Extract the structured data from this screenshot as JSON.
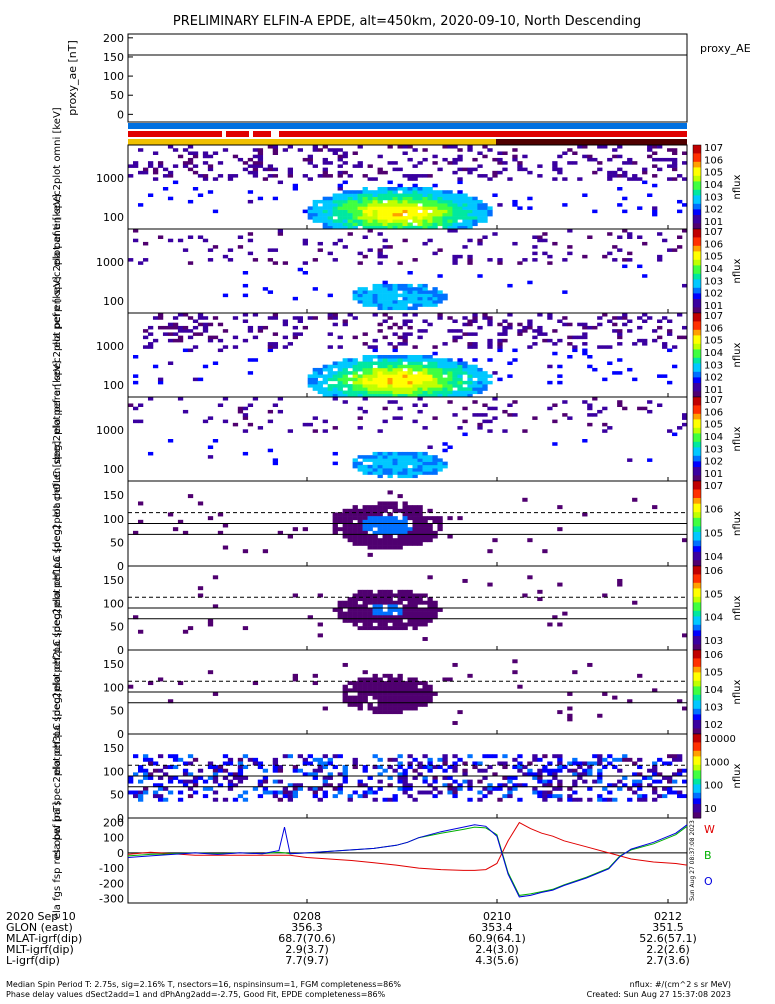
{
  "title": "PRELIMINARY ELFIN-A EPDE, alt=450km, 2020-09-10, North Descending",
  "chart_data": [
    {
      "type": "line",
      "ylabel": "proxy_ae [nT]",
      "legend": [
        "proxy_AE"
      ],
      "ylim": [
        -20,
        210
      ],
      "yticks": [
        "200",
        "150",
        "100",
        "50",
        "0"
      ],
      "reference_line": 155
    },
    {
      "type": "heatmap",
      "ylabel": "ela pef en spec2plot omni [keV]",
      "yscale": "log",
      "ylim": [
        50,
        7000
      ],
      "yticks": [
        "1000",
        "100"
      ],
      "colorbar": {
        "label": "nflux",
        "scale": "log",
        "ticks": [
          "10^7",
          "10^6",
          "10^5",
          "10^4",
          "10^3",
          "10^2",
          "10^1"
        ]
      }
    },
    {
      "type": "heatmap",
      "ylabel": "ela pef en spec2plot anti [keV]",
      "yscale": "log",
      "ylim": [
        50,
        7000
      ],
      "yticks": [
        "1000",
        "100"
      ],
      "colorbar": {
        "label": "nflux",
        "scale": "log",
        "ticks": [
          "10^7",
          "10^6",
          "10^5",
          "10^4",
          "10^3",
          "10^2",
          "10^1"
        ]
      }
    },
    {
      "type": "heatmap",
      "ylabel": "ela pef en spec2plot perp [keV]",
      "yscale": "log",
      "ylim": [
        50,
        7000
      ],
      "yticks": [
        "1000",
        "100"
      ],
      "colorbar": {
        "label": "nflux",
        "scale": "log",
        "ticks": [
          "10^7",
          "10^6",
          "10^5",
          "10^4",
          "10^3",
          "10^2",
          "10^1"
        ]
      }
    },
    {
      "type": "heatmap",
      "ylabel": "ela pef en spec2plot para [keV]",
      "yscale": "log",
      "ylim": [
        50,
        7000
      ],
      "yticks": [
        "1000",
        "100"
      ],
      "colorbar": {
        "label": "nflux",
        "scale": "log",
        "ticks": [
          "10^7",
          "10^6",
          "10^5",
          "10^4",
          "10^3",
          "10^2",
          "10^1"
        ]
      }
    },
    {
      "type": "heatmap",
      "ylabel": "ela pef pa spec2plot ch0LC [deg]",
      "ylim": [
        0,
        180
      ],
      "yticks": [
        "150",
        "100",
        "50",
        "0"
      ],
      "colorbar": {
        "label": "nflux",
        "scale": "log",
        "ticks": [
          "10^7",
          "10^6",
          "10^5",
          "10^4"
        ]
      }
    },
    {
      "type": "heatmap",
      "ylabel": "ela pef pa spec2plot ch1LC [deg]",
      "ylim": [
        0,
        180
      ],
      "yticks": [
        "150",
        "100",
        "50",
        "0"
      ],
      "colorbar": {
        "label": "nflux",
        "scale": "log",
        "ticks": [
          "10^6",
          "10^5",
          "10^4",
          "10^3"
        ]
      }
    },
    {
      "type": "heatmap",
      "ylabel": "ela pef pa spec2plot ch2LC [deg]",
      "ylim": [
        0,
        180
      ],
      "yticks": [
        "150",
        "100",
        "50",
        "0"
      ],
      "colorbar": {
        "label": "nflux",
        "scale": "log",
        "ticks": [
          "10^6",
          "10^5",
          "10^4",
          "10^3",
          "10^2"
        ]
      }
    },
    {
      "type": "heatmap",
      "ylabel": "ela pef pa spec2plot ch3LC [deg]",
      "ylim": [
        0,
        180
      ],
      "yticks": [
        "150",
        "100",
        "50",
        "0"
      ],
      "colorbar": {
        "label": "nflux",
        "scale": "log",
        "ticks": [
          "10000",
          "1000",
          "100",
          "10"
        ]
      }
    },
    {
      "type": "line",
      "ylabel": "ela fgs fsp res obw [nT]",
      "ylim": [
        -330,
        230
      ],
      "yticks": [
        "200",
        "100",
        "0",
        "-100",
        "-200",
        "-300"
      ],
      "legend": [
        "W",
        "B",
        "O"
      ],
      "series_colors": [
        "#e00000",
        "#00b000",
        "#0000e0"
      ],
      "x": [
        0,
        0.04,
        0.08,
        0.12,
        0.16,
        0.2,
        0.24,
        0.27,
        0.28,
        0.29,
        0.32,
        0.36,
        0.4,
        0.44,
        0.48,
        0.5,
        0.52,
        0.56,
        0.6,
        0.62,
        0.64,
        0.66,
        0.68,
        0.7,
        0.72,
        0.74,
        0.76,
        0.78,
        0.82,
        0.86,
        0.88,
        0.9,
        0.94,
        0.98,
        1.0
      ],
      "series": [
        {
          "name": "W",
          "values": [
            -10,
            5,
            -5,
            -15,
            -15,
            -15,
            -15,
            -15,
            -15,
            -15,
            -30,
            -40,
            -50,
            -65,
            -80,
            -90,
            -100,
            -110,
            -115,
            -115,
            -110,
            -70,
            80,
            200,
            160,
            130,
            110,
            80,
            40,
            0,
            -20,
            -40,
            -60,
            -70,
            -80
          ]
        },
        {
          "name": "B",
          "values": [
            -20,
            -10,
            -5,
            0,
            -5,
            0,
            -5,
            5,
            0,
            -5,
            0,
            10,
            20,
            30,
            50,
            70,
            100,
            130,
            155,
            170,
            165,
            120,
            -130,
            -280,
            -270,
            -255,
            -240,
            -210,
            -160,
            -100,
            -20,
            20,
            60,
            120,
            175
          ]
        },
        {
          "name": "O",
          "values": [
            -30,
            -20,
            -10,
            0,
            -10,
            0,
            -5,
            15,
            170,
            -5,
            0,
            10,
            20,
            30,
            50,
            70,
            100,
            140,
            170,
            185,
            175,
            110,
            -140,
            -290,
            -280,
            -260,
            -245,
            -215,
            -165,
            -105,
            -25,
            25,
            70,
            130,
            185
          ]
        }
      ]
    }
  ],
  "xaxis": {
    "ticks": [
      "0208",
      "0210",
      "0212"
    ],
    "rows": [
      {
        "label": "2020 Sep 10",
        "values": [
          "0208",
          "0210",
          "0212"
        ]
      },
      {
        "label": "GLON (east)",
        "values": [
          "356.3",
          "353.4",
          "351.5"
        ]
      },
      {
        "label": "MLAT-igrf(dip)",
        "values": [
          "68.7(70.6)",
          "60.9(64.1)",
          "52.6(57.1)"
        ]
      },
      {
        "label": "MLT-igrf(dip)",
        "values": [
          "2.9(3.7)",
          "2.4(3.0)",
          "2.2(2.6)"
        ]
      },
      {
        "label": "L-igrf(dip)",
        "values": [
          "7.7(9.7)",
          "4.3(5.6)",
          "2.7(3.6)"
        ]
      }
    ]
  },
  "side_stamp": "Sun Aug 27 08:37:08 2023",
  "footer": {
    "line1": "Median Spin Period T: 2.75s, sig=2.16% T, nsectors=16, nspinsinsum=1, FGM completeness=86%",
    "line2": "Phase delay values dSect2add=1 and dPhAng2add=-2.75, Good Fit, EPDE completeness=86%",
    "right1": "nflux: #/(cm^2 s sr MeV)",
    "right2": "Created: Sun Aug 27 15:37:08 2023"
  },
  "colors": {
    "region_bar_top": "#0070e0",
    "region_bar_mid": "#e00000",
    "region_bar_low": "#f0c000",
    "region_bar_dark": "#500000"
  }
}
